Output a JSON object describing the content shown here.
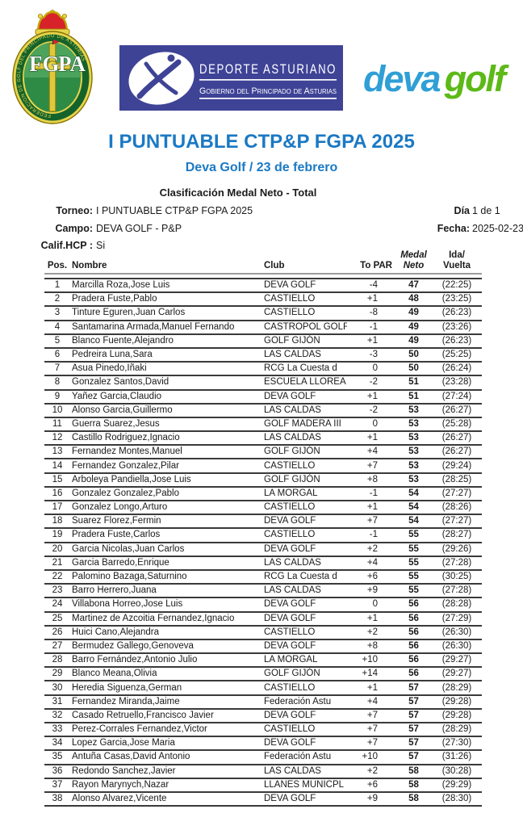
{
  "logos": {
    "federation_ring_text": "FEDERACION DE GOLF DEL PRINCIPADO DE ASTURIAS",
    "federation_initials_left": "FG",
    "federation_initials_right": "PA",
    "deporte_line1": "DEPORTE ASTURIANO",
    "deporte_line2": "Gobierno del Principado de Asturias",
    "deva_part1": "deva",
    "deva_part2": "golf"
  },
  "colors": {
    "title_blue": "#1b79c4",
    "banner_blue": "#3e4396",
    "deva_blue": "#2f9fd6",
    "deva_green": "#5cb917",
    "crest_green": "#14632b",
    "crest_yellow": "#e8d44c",
    "crown_red": "#d8222a",
    "row_line": "#3a3a3a"
  },
  "titles": {
    "main": "I PUNTUABLE CTP&P FGPA 2025",
    "sub": "Deva Golf / 23 de febrero",
    "section": "Clasificación Medal Neto - Total"
  },
  "meta": {
    "torneo_label": "Torneo:",
    "torneo_value": "I PUNTUABLE CTP&P FGPA 2025",
    "campo_label": "Campo:",
    "campo_value": "DEVA GOLF - P&P",
    "califhcp_label": "Calif.HCP :",
    "califhcp_value": "Si",
    "dia_label": "Día",
    "dia_value": "1 de 1",
    "fecha_label": "Fecha:",
    "fecha_value": "2025-02-23"
  },
  "table": {
    "columns": [
      {
        "line1": "Pos."
      },
      {
        "line1": "Nombre"
      },
      {
        "line1": "Club"
      },
      {
        "line1": "To PAR"
      },
      {
        "line1": "Medal",
        "line2": "Neto"
      },
      {
        "line1": "Ida/",
        "line2": "Vuelta"
      }
    ],
    "rows": [
      [
        "1",
        "Marcilla Roza,Jose Luis",
        "DEVA GOLF",
        "-4",
        "47",
        "(22:25)"
      ],
      [
        "2",
        "Pradera Fuste,Pablo",
        "CASTIELLO",
        "+1",
        "48",
        "(23:25)"
      ],
      [
        "3",
        "Tinture Eguren,Juan Carlos",
        "CASTIELLO",
        "-8",
        "49",
        "(26:23)"
      ],
      [
        "4",
        "Santamarina Armada,Manuel Fernando",
        "CASTROPOL GOLF",
        "-1",
        "49",
        "(23:26)"
      ],
      [
        "5",
        "Blanco Fuente,Alejandro",
        "GOLF GIJÓN",
        "+1",
        "49",
        "(26:23)"
      ],
      [
        "6",
        "Pedreira Luna,Sara",
        "LAS CALDAS",
        "-3",
        "50",
        "(25:25)"
      ],
      [
        "7",
        "Asua Pinedo,Iñaki",
        "RCG La Cuesta d",
        "0",
        "50",
        "(26:24)"
      ],
      [
        "8",
        "Gonzalez Santos,David",
        "ESCUELA LLOREA",
        "-2",
        "51",
        "(23:28)"
      ],
      [
        "9",
        "Yañez Garcia,Claudio",
        "DEVA GOLF",
        "+1",
        "51",
        "(27:24)"
      ],
      [
        "10",
        "Alonso Garcia,Guillermo",
        "LAS CALDAS",
        "-2",
        "53",
        "(26:27)"
      ],
      [
        "11",
        "Guerra Suarez,Jesus",
        "GOLF MADERA III",
        "0",
        "53",
        "(25:28)"
      ],
      [
        "12",
        "Castillo Rodriguez,Ignacio",
        "LAS CALDAS",
        "+1",
        "53",
        "(26:27)"
      ],
      [
        "13",
        "Fernandez Montes,Manuel",
        "GOLF GIJÓN",
        "+4",
        "53",
        "(26:27)"
      ],
      [
        "14",
        "Fernandez Gonzalez,Pilar",
        "CASTIELLO",
        "+7",
        "53",
        "(29:24)"
      ],
      [
        "15",
        "Arboleya Pandiella,Jose Luis",
        "GOLF GIJÓN",
        "+8",
        "53",
        "(28:25)"
      ],
      [
        "16",
        "Gonzalez Gonzalez,Pablo",
        "LA MORGAL",
        "-1",
        "54",
        "(27:27)"
      ],
      [
        "17",
        "Gonzalez Longo,Arturo",
        "CASTIELLO",
        "+1",
        "54",
        "(28:26)"
      ],
      [
        "18",
        "Suarez Florez,Fermin",
        "DEVA GOLF",
        "+7",
        "54",
        "(27:27)"
      ],
      [
        "19",
        "Pradera Fuste,Carlos",
        "CASTIELLO",
        "-1",
        "55",
        "(28:27)"
      ],
      [
        "20",
        "Garcia Nicolas,Juan Carlos",
        "DEVA GOLF",
        "+2",
        "55",
        "(29:26)"
      ],
      [
        "21",
        "Garcia Barredo,Enrique",
        "LAS CALDAS",
        "+4",
        "55",
        "(27:28)"
      ],
      [
        "22",
        "Palomino Bazaga,Saturnino",
        "RCG La Cuesta d",
        "+6",
        "55",
        "(30:25)"
      ],
      [
        "23",
        "Barro Herrero,Juana",
        "LAS CALDAS",
        "+9",
        "55",
        "(27:28)"
      ],
      [
        "24",
        "Villabona Horreo,Jose Luis",
        "DEVA GOLF",
        "0",
        "56",
        "(28:28)"
      ],
      [
        "25",
        "Martinez de Azcoitia Fernandez,Ignacio",
        "DEVA GOLF",
        "+1",
        "56",
        "(27:29)"
      ],
      [
        "26",
        "Huici Cano,Alejandra",
        "CASTIELLO",
        "+2",
        "56",
        "(26:30)"
      ],
      [
        "27",
        "Bermudez Gallego,Genoveva",
        "DEVA GOLF",
        "+8",
        "56",
        "(26:30)"
      ],
      [
        "28",
        "Barro Fernández,Antonio Julio",
        "LA MORGAL",
        "+10",
        "56",
        "(29:27)"
      ],
      [
        "29",
        "Blanco Meana,Olivia",
        "GOLF GIJÓN",
        "+14",
        "56",
        "(29:27)"
      ],
      [
        "30",
        "Heredia Siguenza,German",
        "CASTIELLO",
        "+1",
        "57",
        "(28:29)"
      ],
      [
        "31",
        "Fernandez Miranda,Jaime",
        "Federación Astu",
        "+4",
        "57",
        "(29:28)"
      ],
      [
        "32",
        "Casado Retruello,Francisco Javier",
        "DEVA GOLF",
        "+7",
        "57",
        "(29:28)"
      ],
      [
        "33",
        "Perez-Corrales Fernandez,Victor",
        "CASTIELLO",
        "+7",
        "57",
        "(28:29)"
      ],
      [
        "34",
        "Lopez Garcia,Jose Maria",
        "DEVA GOLF",
        "+7",
        "57",
        "(27:30)"
      ],
      [
        "35",
        "Antuña Casas,David Antonio",
        "Federación Astu",
        "+10",
        "57",
        "(31:26)"
      ],
      [
        "36",
        "Redondo Sanchez,Javier",
        "LAS CALDAS",
        "+2",
        "58",
        "(30:28)"
      ],
      [
        "37",
        "Rayon Marynych,Nazar",
        "LLANES MUNICPL",
        "+6",
        "58",
        "(29:29)"
      ],
      [
        "38",
        "Alonso Alvarez,Vicente",
        "DEVA GOLF",
        "+9",
        "58",
        "(28:30)"
      ]
    ]
  }
}
